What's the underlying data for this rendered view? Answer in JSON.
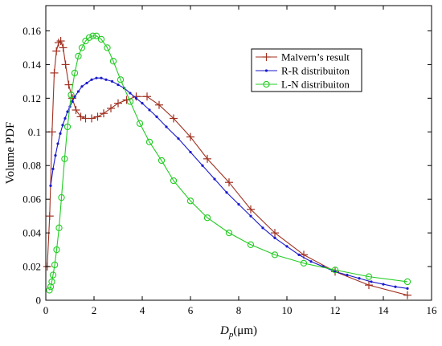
{
  "chart_data": {
    "type": "line",
    "title": "",
    "xlabel_main": "D",
    "xlabel_sub": "p",
    "xlabel_unit": "(μm)",
    "ylabel": "Volume PDF",
    "xlim": [
      0,
      16
    ],
    "ylim": [
      0,
      0.175
    ],
    "x_ticks": [
      0,
      2,
      4,
      6,
      8,
      10,
      12,
      14,
      16
    ],
    "x_tick_labels": [
      "0",
      "2",
      "4",
      "6",
      "8",
      "10",
      "12",
      "14",
      "16"
    ],
    "y_ticks": [
      0,
      0.02,
      0.04,
      0.06,
      0.08,
      0.1,
      0.12,
      0.14,
      0.16
    ],
    "y_tick_labels": [
      "0",
      "0.02",
      "0.04",
      "0.06",
      "0.08",
      "0.1",
      "0.12",
      "0.14",
      "0.16"
    ],
    "grid": false,
    "legend_position": "top-right",
    "series": [
      {
        "name": "Malvern’s result",
        "color": "#a03020",
        "marker": "plus",
        "x": [
          0.06,
          0.16,
          0.26,
          0.35,
          0.44,
          0.53,
          0.62,
          0.72,
          0.82,
          0.95,
          1.1,
          1.25,
          1.45,
          1.65,
          1.9,
          2.15,
          2.4,
          2.7,
          3.0,
          3.35,
          3.75,
          4.2,
          4.7,
          5.3,
          6.0,
          6.7,
          7.6,
          8.5,
          9.5,
          10.7,
          12.0,
          13.4,
          15.0
        ],
        "y": [
          0.02,
          0.05,
          0.1,
          0.135,
          0.148,
          0.153,
          0.154,
          0.15,
          0.14,
          0.128,
          0.12,
          0.113,
          0.109,
          0.108,
          0.108,
          0.109,
          0.111,
          0.114,
          0.117,
          0.119,
          0.121,
          0.121,
          0.116,
          0.108,
          0.097,
          0.084,
          0.07,
          0.054,
          0.04,
          0.027,
          0.017,
          0.009,
          0.003
        ]
      },
      {
        "name": "R-R distribuiton",
        "color": "#1a1acc",
        "marker": "dot",
        "x": [
          0.2,
          0.3,
          0.4,
          0.5,
          0.6,
          0.7,
          0.8,
          0.9,
          1.0,
          1.1,
          1.2,
          1.35,
          1.5,
          1.7,
          1.9,
          2.1,
          2.3,
          2.5,
          2.75,
          3.0,
          3.25,
          3.5,
          3.75,
          4.0,
          4.3,
          4.6,
          5.0,
          5.5,
          6.0,
          6.5,
          7.0,
          7.5,
          8.0,
          8.5,
          9.0,
          9.5,
          10.0,
          10.5,
          11.0,
          11.5,
          12.0,
          12.5,
          13.0,
          13.5,
          14.0,
          14.5,
          15.0
        ],
        "y": [
          0.068,
          0.078,
          0.086,
          0.093,
          0.099,
          0.104,
          0.108,
          0.112,
          0.115,
          0.118,
          0.121,
          0.124,
          0.127,
          0.129,
          0.131,
          0.132,
          0.132,
          0.131,
          0.13,
          0.128,
          0.126,
          0.123,
          0.12,
          0.117,
          0.113,
          0.109,
          0.103,
          0.096,
          0.088,
          0.08,
          0.072,
          0.064,
          0.057,
          0.05,
          0.043,
          0.037,
          0.032,
          0.027,
          0.023,
          0.02,
          0.017,
          0.015,
          0.013,
          0.011,
          0.0095,
          0.008,
          0.007
        ]
      },
      {
        "name": "L-N distribuiton",
        "color": "#22cc22",
        "marker": "circle",
        "x": [
          0.15,
          0.2,
          0.25,
          0.3,
          0.37,
          0.45,
          0.55,
          0.65,
          0.78,
          0.9,
          1.05,
          1.2,
          1.35,
          1.5,
          1.65,
          1.8,
          1.95,
          2.1,
          2.3,
          2.55,
          2.8,
          3.1,
          3.5,
          3.9,
          4.3,
          4.8,
          5.3,
          6.0,
          6.7,
          7.6,
          8.5,
          9.5,
          10.7,
          12.0,
          13.4,
          15.0
        ],
        "y": [
          0.006,
          0.008,
          0.011,
          0.015,
          0.021,
          0.03,
          0.043,
          0.061,
          0.084,
          0.103,
          0.122,
          0.135,
          0.145,
          0.15,
          0.154,
          0.156,
          0.157,
          0.157,
          0.155,
          0.15,
          0.142,
          0.131,
          0.118,
          0.105,
          0.094,
          0.083,
          0.071,
          0.059,
          0.049,
          0.04,
          0.033,
          0.027,
          0.022,
          0.018,
          0.014,
          0.011
        ]
      }
    ]
  }
}
